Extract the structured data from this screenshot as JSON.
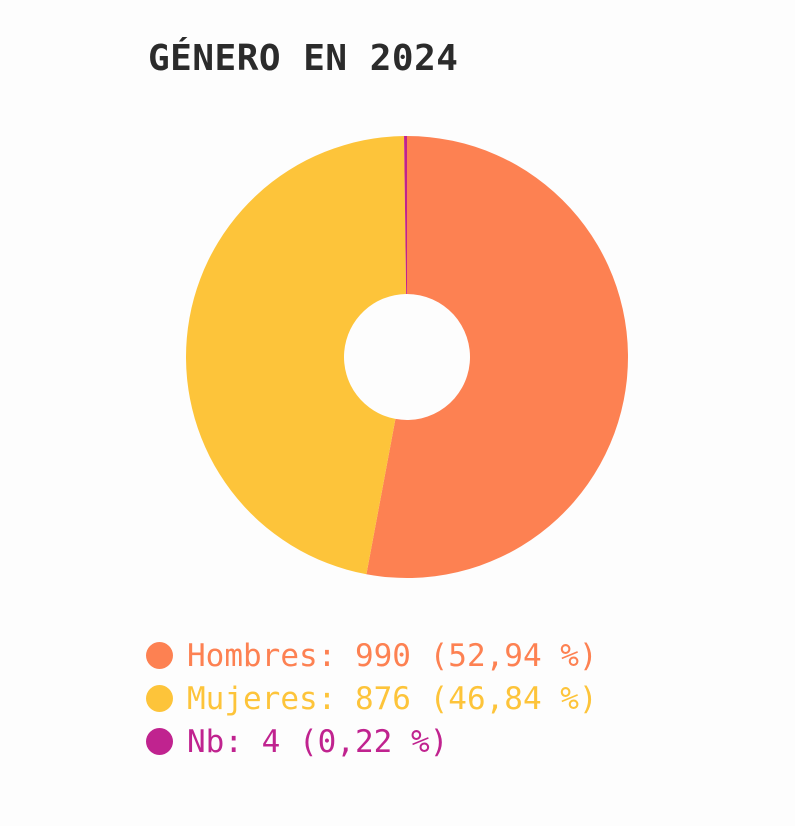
{
  "title": "GÉNERO EN 2024",
  "chart_data": {
    "type": "pie",
    "title": "GÉNERO EN 2024",
    "donut": true,
    "start": "top",
    "direction": "clockwise",
    "legend_position": "bottom",
    "slices": [
      {
        "name": "Hombres",
        "value": 990,
        "percent_label": "52,94 %",
        "color": "#fd8152",
        "legend_text": "Hombres: 990 (52,94 %)"
      },
      {
        "name": "Mujeres",
        "value": 876,
        "percent_label": "46,84 %",
        "color": "#fdc43a",
        "legend_text": "Mujeres: 876 (46,84 %)"
      },
      {
        "name": "Nb",
        "value": 4,
        "percent_label": "0,22 %",
        "color": "#c0238f",
        "legend_text": "Nb: 4 (0,22 %)"
      }
    ]
  }
}
